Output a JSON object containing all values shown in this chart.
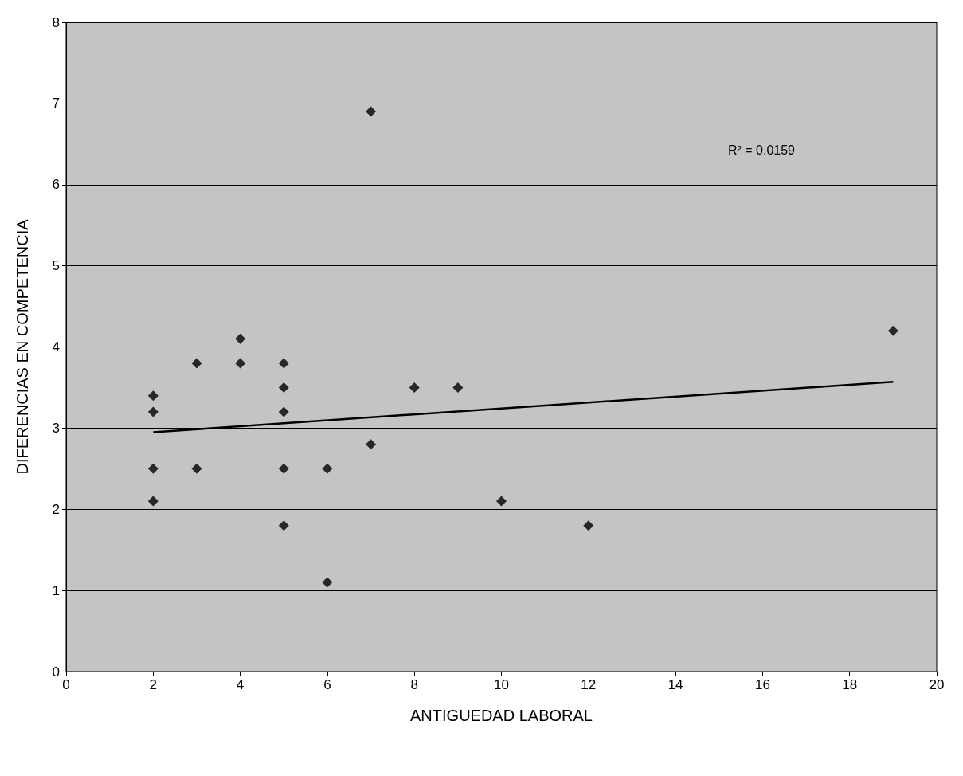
{
  "chart_data": {
    "type": "scatter",
    "xlabel": "ANTIGUEDAD LABORAL",
    "ylabel": "DIFERENCIAS EN COMPETENCIA",
    "annotations": [
      "R² = 0.0159"
    ],
    "xlim": [
      0,
      20
    ],
    "xticks": [
      0,
      2,
      4,
      6,
      8,
      10,
      12,
      14,
      16,
      18,
      20
    ],
    "ylim": [
      0,
      8
    ],
    "yticks": [
      0,
      1,
      2,
      3,
      4,
      5,
      6,
      7,
      8
    ],
    "grid": "y",
    "series": [
      {
        "marker": "diamond",
        "color": "#000000",
        "x": [
          2,
          2,
          2,
          2,
          3,
          3,
          4,
          4,
          5,
          5,
          5,
          5,
          5,
          6,
          6,
          7,
          7,
          8,
          9,
          10,
          12,
          19
        ],
        "values": [
          3.4,
          3.2,
          2.5,
          2.1,
          3.8,
          2.5,
          4.1,
          3.8,
          3.8,
          3.5,
          3.2,
          2.5,
          1.8,
          2.5,
          1.1,
          6.9,
          2.8,
          3.5,
          3.5,
          2.1,
          1.8,
          4.2
        ]
      },
      {
        "type": "line",
        "marker": "none",
        "color": "#000000",
        "x": [
          2,
          19
        ],
        "values": [
          2.95,
          3.57
        ]
      }
    ]
  }
}
